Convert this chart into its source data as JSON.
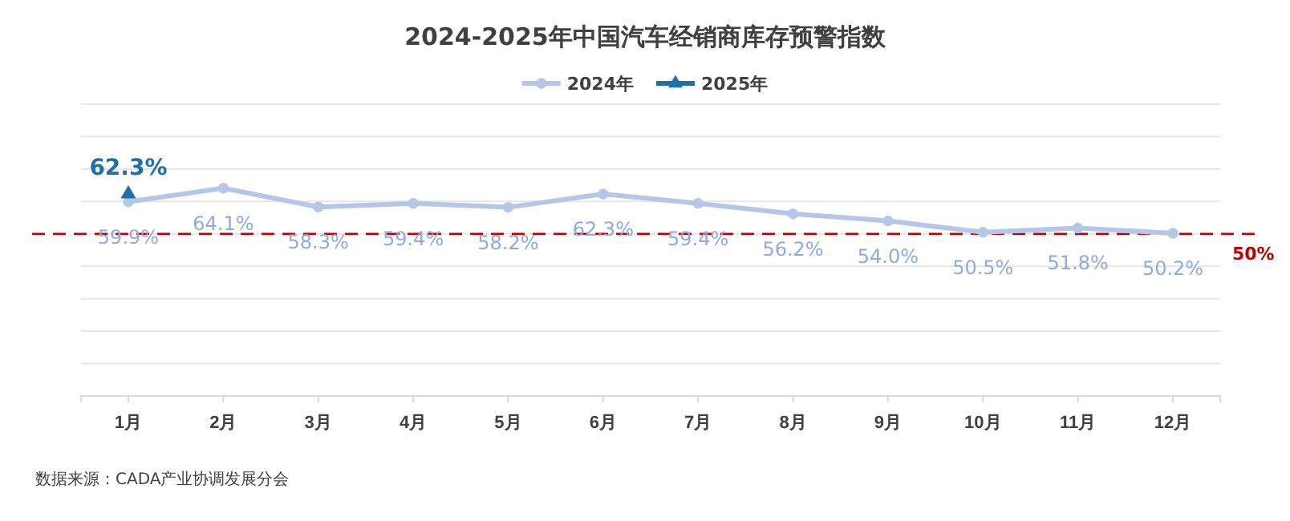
{
  "chart_data": {
    "type": "line",
    "title": "2024-2025年中国汽车经销商库存预警指数",
    "categories": [
      "1月",
      "2月",
      "3月",
      "4月",
      "5月",
      "6月",
      "7月",
      "8月",
      "9月",
      "10月",
      "11月",
      "12月"
    ],
    "series": [
      {
        "name": "2024年",
        "color": "#b4c7e7",
        "marker": "circle",
        "values": [
          59.9,
          64.1,
          58.3,
          59.4,
          58.2,
          62.3,
          59.4,
          56.2,
          54.0,
          50.5,
          51.8,
          50.2
        ],
        "value_labels": [
          "59.9%",
          "64.1%",
          "58.3%",
          "59.4%",
          "58.2%",
          "62.3%",
          "59.4%",
          "56.2%",
          "54.0%",
          "50.5%",
          "51.8%",
          "50.2%"
        ]
      },
      {
        "name": "2025年",
        "color": "#1f6fa8",
        "marker": "triangle",
        "values": [
          62.3,
          null,
          null,
          null,
          null,
          null,
          null,
          null,
          null,
          null,
          null,
          null
        ],
        "value_labels": [
          "62.3%",
          null,
          null,
          null,
          null,
          null,
          null,
          null,
          null,
          null,
          null,
          null
        ]
      }
    ],
    "ylim": [
      0,
      90
    ],
    "yticks": [
      {
        "value": 0,
        "label": null
      },
      {
        "value": 10,
        "label": null
      },
      {
        "value": 20,
        "label": null
      },
      {
        "value": 30,
        "label": null
      },
      {
        "value": 40,
        "label": null
      },
      {
        "value": 50,
        "label": null
      },
      {
        "value": 60,
        "label": null
      },
      {
        "value": 70,
        "label": null
      },
      {
        "value": 80,
        "label": null
      },
      {
        "value": 90,
        "label": null
      }
    ],
    "tick_labels": "x",
    "grid": "y",
    "legend": "top",
    "ref_lines": [
      {
        "axis": "y",
        "value": 50,
        "label": "50%",
        "color": "#c00000",
        "line_style": "dashed"
      }
    ],
    "annotations": [
      "数据来源：CADA产业协调发展分会"
    ]
  }
}
